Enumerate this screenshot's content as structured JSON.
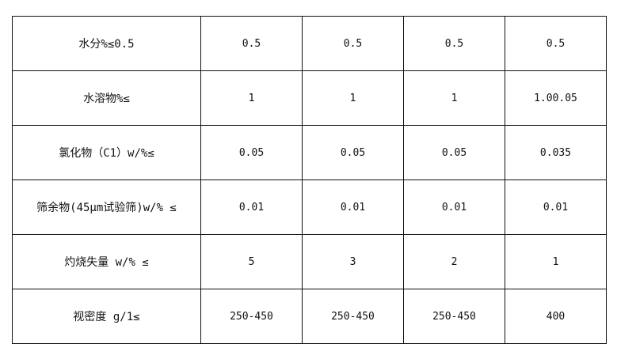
{
  "rows": [
    {
      "label": "水分%≤0.5",
      "values": [
        "0.5",
        "0.5",
        "0.5",
        "0.5"
      ]
    },
    {
      "label": "水溶物%≤",
      "values": [
        "1",
        "1",
        "1",
        "1.00.05"
      ]
    },
    {
      "label": "氯化物（C1）w/%≤",
      "values": [
        "0.05",
        "0.05",
        "0.05",
        "0.035"
      ]
    },
    {
      "label": "筛余物(45μm试验筛)w/% ≤",
      "values": [
        "0.01",
        "0.01",
        "0.01",
        "0.01"
      ]
    },
    {
      "label": "灼烧失量 w/% ≤",
      "values": [
        "5",
        "3",
        "2",
        "1"
      ]
    },
    {
      "label": "视密度 g/1≤",
      "values": [
        "250-450",
        "250-450",
        "250-450",
        "400"
      ]
    }
  ]
}
